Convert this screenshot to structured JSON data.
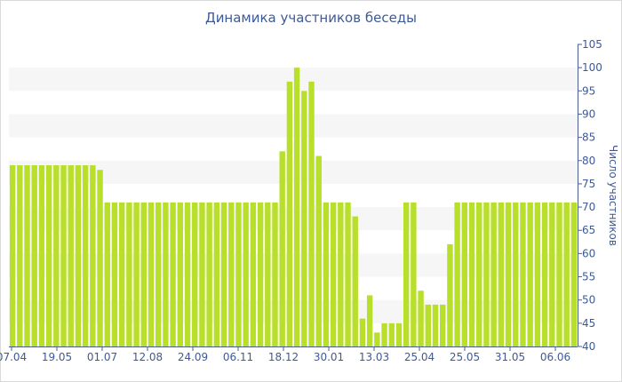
{
  "chart_data": {
    "type": "bar",
    "title": "Динамика участников беседы",
    "xlabel": "",
    "ylabel": "Число участников",
    "ylim": [
      40,
      105
    ],
    "yticks": [
      40,
      45,
      50,
      55,
      60,
      65,
      70,
      75,
      80,
      85,
      90,
      95,
      100,
      105
    ],
    "xtick_labels": [
      "07.04",
      "19.05",
      "01.07",
      "12.08",
      "24.09",
      "06.11",
      "18.12",
      "30.01",
      "13.03",
      "25.04",
      "25.05",
      "31.05",
      "06.06"
    ],
    "grid": "horizontal-bands",
    "bar_color": "#b8df2a",
    "values": [
      79,
      79,
      79,
      79,
      79,
      79,
      79,
      79,
      79,
      79,
      79,
      79,
      78,
      71,
      71,
      71,
      71,
      71,
      71,
      71,
      71,
      71,
      71,
      71,
      71,
      71,
      71,
      71,
      71,
      71,
      71,
      71,
      71,
      71,
      71,
      71,
      71,
      82,
      97,
      100,
      95,
      97,
      81,
      71,
      71,
      71,
      71,
      68,
      46,
      51,
      43,
      45,
      45,
      45,
      71,
      71,
      52,
      49,
      49,
      49,
      62,
      71,
      71,
      71,
      71,
      71,
      71,
      71,
      71,
      71,
      71,
      71,
      71,
      71,
      71,
      71,
      71,
      71
    ]
  }
}
